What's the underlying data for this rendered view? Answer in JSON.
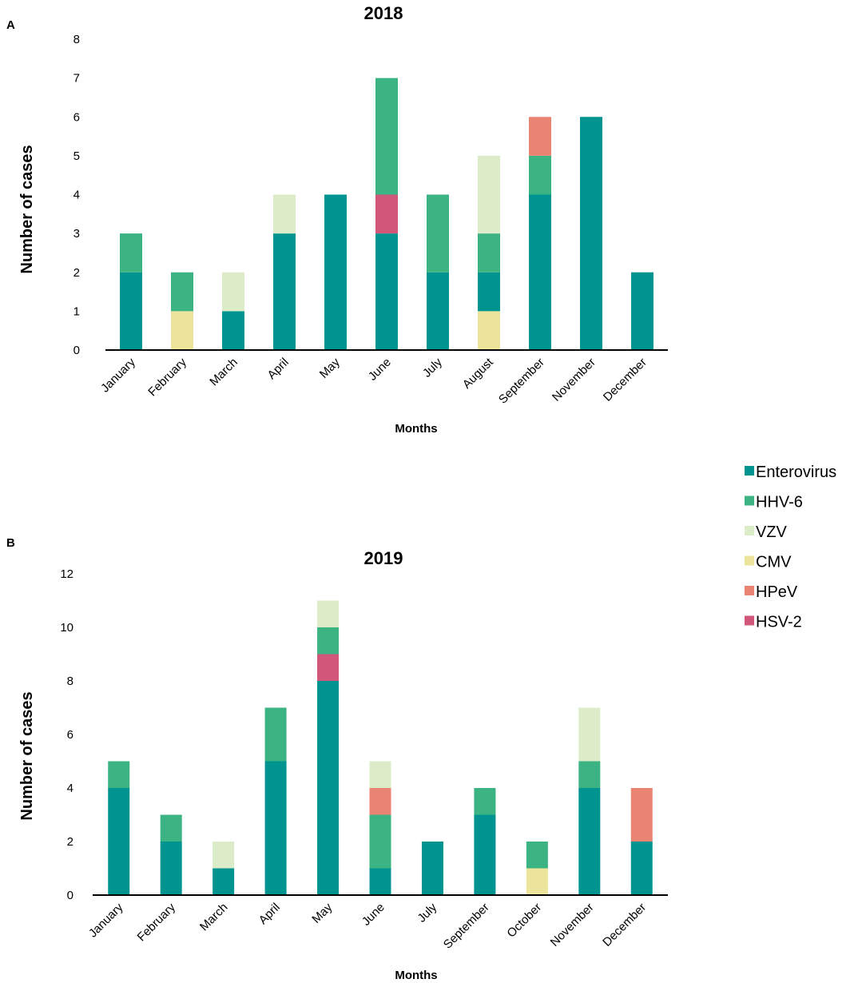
{
  "colors": {
    "Enterovirus": "#009490",
    "HHV-6": "#3cb383",
    "VZV": "#dcecc8",
    "CMV": "#ece49a",
    "HPeV": "#ea8472",
    "HSV-2": "#d0577a"
  },
  "legend": {
    "items": [
      "Enterovirus",
      "HHV-6",
      "VZV",
      "CMV",
      "HPeV",
      "HSV-2"
    ]
  },
  "chart_data": [
    {
      "panel": "A",
      "type": "bar",
      "stacked": true,
      "title": "2018",
      "xlabel": "Months",
      "ylabel": "Number of cases",
      "ylim": [
        0,
        8
      ],
      "yticks": [
        0,
        1,
        2,
        3,
        4,
        5,
        6,
        7,
        8
      ],
      "categories": [
        "January",
        "February",
        "March",
        "April",
        "May",
        "June",
        "July",
        "August",
        "September",
        "November",
        "December"
      ],
      "series": [
        {
          "name": "CMV",
          "values": [
            0,
            1,
            0,
            0,
            0,
            0,
            0,
            1,
            0,
            0,
            0
          ]
        },
        {
          "name": "Enterovirus",
          "values": [
            2,
            0,
            1,
            3,
            4,
            3,
            2,
            1,
            4,
            6,
            2
          ]
        },
        {
          "name": "HSV-2",
          "values": [
            0,
            0,
            0,
            0,
            0,
            1,
            0,
            0,
            0,
            0,
            0
          ]
        },
        {
          "name": "HHV-6",
          "values": [
            1,
            1,
            0,
            0,
            0,
            3,
            2,
            1,
            1,
            0,
            0
          ]
        },
        {
          "name": "VZV",
          "values": [
            0,
            0,
            1,
            1,
            0,
            0,
            0,
            2,
            0,
            0,
            0
          ]
        },
        {
          "name": "HPeV",
          "values": [
            0,
            0,
            0,
            0,
            0,
            0,
            0,
            0,
            1,
            0,
            0
          ]
        }
      ],
      "grid": false
    },
    {
      "panel": "B",
      "type": "bar",
      "stacked": true,
      "title": "2019",
      "xlabel": "Months",
      "ylabel": "Number of cases",
      "ylim": [
        0,
        12
      ],
      "yticks": [
        0,
        2,
        4,
        6,
        8,
        10,
        12
      ],
      "categories": [
        "January",
        "February",
        "March",
        "April",
        "May",
        "June",
        "July",
        "September",
        "October",
        "November",
        "December"
      ],
      "series": [
        {
          "name": "CMV",
          "values": [
            0,
            0,
            0,
            0,
            0,
            0,
            0,
            0,
            1,
            0,
            0
          ]
        },
        {
          "name": "Enterovirus",
          "values": [
            4,
            2,
            1,
            5,
            8,
            1,
            2,
            3,
            0,
            4,
            2
          ]
        },
        {
          "name": "HSV-2",
          "values": [
            0,
            0,
            0,
            0,
            1,
            0,
            0,
            0,
            0,
            0,
            0
          ]
        },
        {
          "name": "HHV-6",
          "values": [
            1,
            1,
            0,
            2,
            1,
            2,
            0,
            1,
            1,
            1,
            0
          ]
        },
        {
          "name": "HPeV",
          "values": [
            0,
            0,
            0,
            0,
            0,
            1,
            0,
            0,
            0,
            0,
            2
          ]
        },
        {
          "name": "VZV",
          "values": [
            0,
            0,
            1,
            0,
            1,
            1,
            0,
            0,
            0,
            2,
            0
          ]
        }
      ],
      "grid": false
    }
  ]
}
